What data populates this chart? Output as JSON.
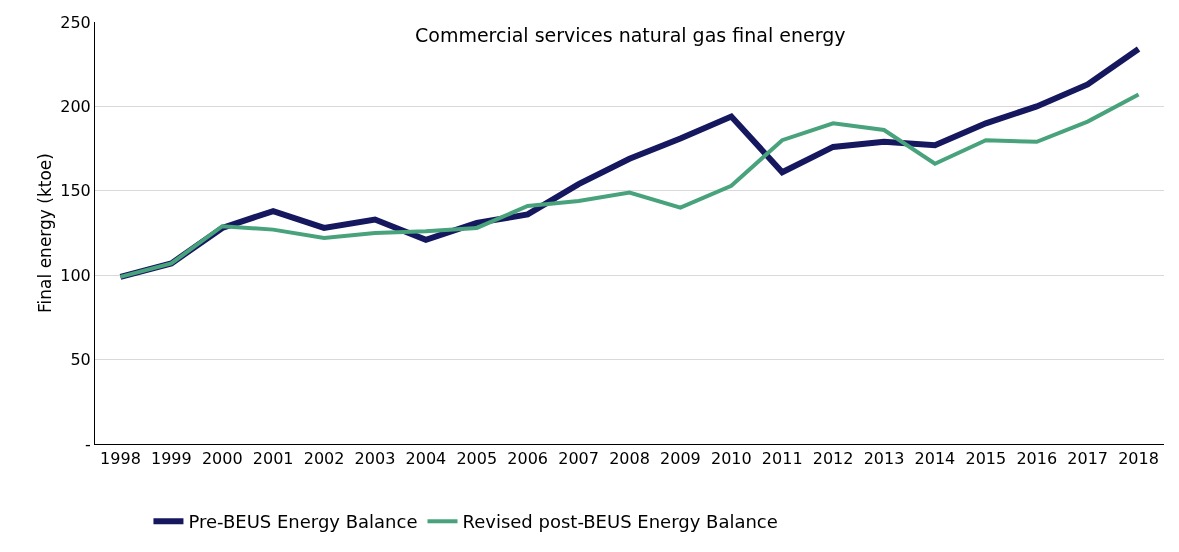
{
  "chart_data": {
    "type": "line",
    "title": "Commercial services natural gas final energy",
    "ylabel": "Final energy (ktoe)",
    "categories": [
      "1998",
      "1999",
      "2000",
      "2001",
      "2002",
      "2003",
      "2004",
      "2005",
      "2006",
      "2007",
      "2008",
      "2009",
      "2010",
      "2011",
      "2012",
      "2013",
      "2014",
      "2015",
      "2016",
      "2017",
      "2018"
    ],
    "series": [
      {
        "name": "Pre-BEUS Energy Balance",
        "color": "#15175f",
        "values": [
          99,
          107,
          128,
          138,
          128,
          133,
          121,
          131,
          136,
          154,
          169,
          181,
          194,
          161,
          176,
          179,
          177,
          190,
          200,
          213,
          234
        ]
      },
      {
        "name": "Revised post-BEUS Energy Balance",
        "color": "#48a27c",
        "values": [
          99,
          107,
          129,
          127,
          122,
          125,
          126,
          128,
          141,
          144,
          149,
          140,
          153,
          180,
          190,
          186,
          166,
          180,
          179,
          191,
          207
        ]
      }
    ],
    "ylim": [
      0,
      250
    ],
    "yticks": [
      {
        "value": 0,
        "label": "-"
      },
      50,
      100,
      150,
      200,
      250
    ],
    "grid": "y",
    "legend": "bottom",
    "line_style": "solid",
    "marker": "none"
  }
}
